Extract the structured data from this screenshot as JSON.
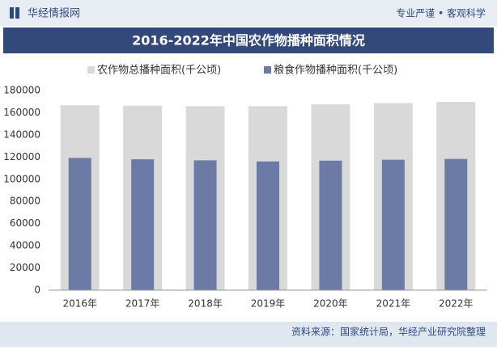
{
  "header": {
    "logo": "华经情报网",
    "slogan": "专业严谨 • 客观科学"
  },
  "chart_data": {
    "type": "bar",
    "title": "2016-2022年中国农作物播种面积情况",
    "categories": [
      "2016年",
      "2017年",
      "2018年",
      "2019年",
      "2020年",
      "2021年",
      "2022年"
    ],
    "series": [
      {
        "name": "农作物总播种面积(千公顷)",
        "color": "#d9d9d9",
        "values": [
          166650,
          166330,
          165900,
          165930,
          167490,
          168700,
          169800
        ]
      },
      {
        "name": "粮食作物播种面积(千公顷)",
        "color": "#6b7ba6",
        "values": [
          119230,
          117990,
          117040,
          116060,
          116770,
          117630,
          118330
        ]
      }
    ],
    "ylim": [
      0,
      180000
    ],
    "yticks": [
      0,
      20000,
      40000,
      60000,
      80000,
      100000,
      120000,
      140000,
      160000,
      180000
    ],
    "grid": false
  },
  "footer": {
    "source": "资料来源：国家统计局，华经产业研究院整理"
  }
}
